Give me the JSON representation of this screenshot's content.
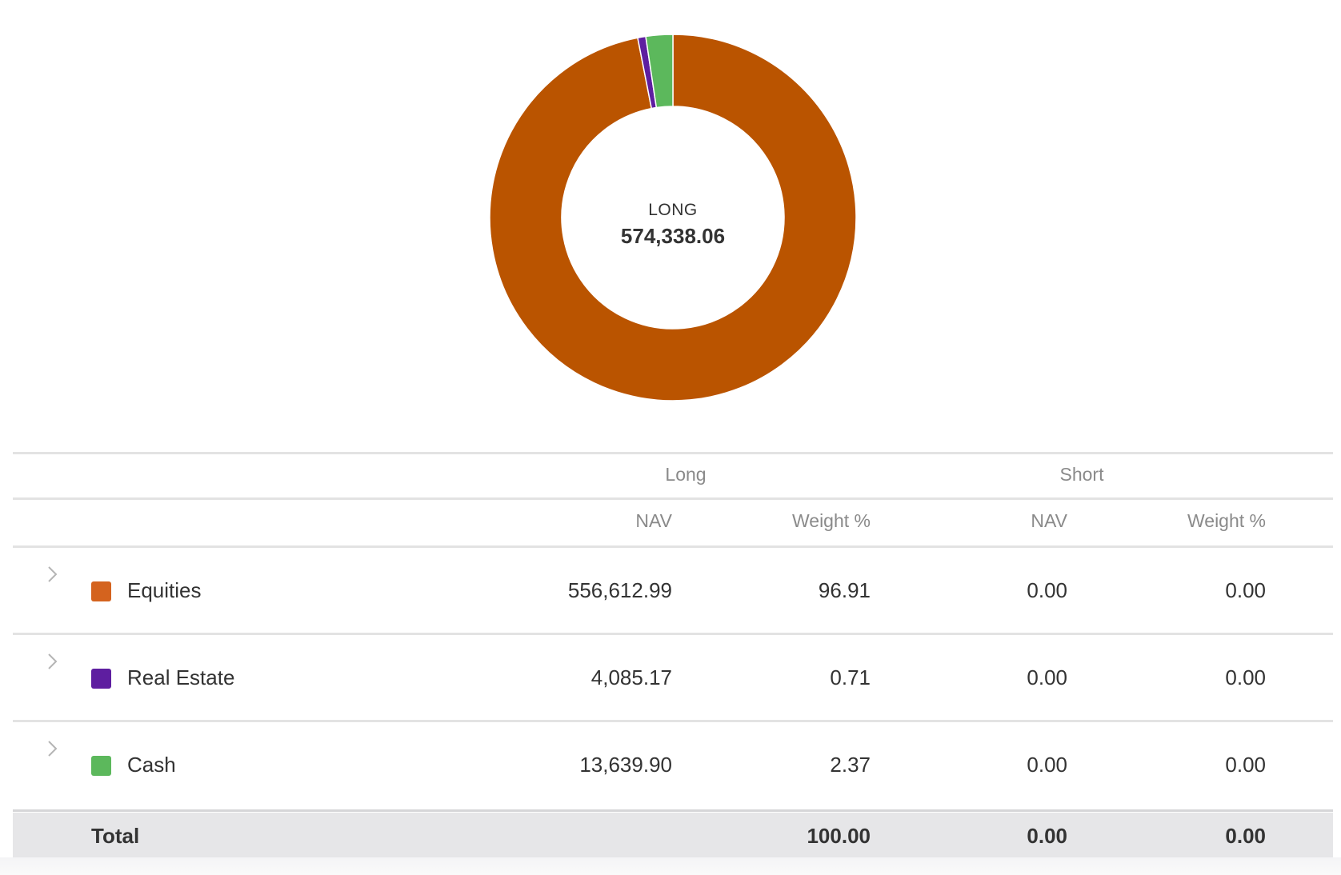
{
  "colors": {
    "equities": "#BA5400",
    "equities_swatch": "#D4631E",
    "real_estate": "#5E1EA0",
    "cash": "#5CB85C",
    "header_text": "#8a8a8a",
    "total_bg": "#e6e6e8"
  },
  "chart_data": {
    "type": "pie",
    "variant": "donut",
    "center_label": "LONG",
    "center_value": "574,338.06",
    "slices": [
      {
        "name": "Equities",
        "value": 96.91,
        "color": "#BA5400"
      },
      {
        "name": "Real Estate",
        "value": 0.71,
        "color": "#5E1EA0"
      },
      {
        "name": "Cash",
        "value": 2.37,
        "color": "#5CB85C"
      }
    ]
  },
  "table": {
    "group_headers": {
      "long": "Long",
      "short": "Short"
    },
    "columns": {
      "long_nav": "NAV",
      "long_weight": "Weight %",
      "short_nav": "NAV",
      "short_weight": "Weight %"
    },
    "rows": [
      {
        "label": "Equities",
        "long_nav": "556,612.99",
        "long_weight": "96.91",
        "short_nav": "0.00",
        "short_weight": "0.00",
        "icon": "chevron-right-icon"
      },
      {
        "label": "Real Estate",
        "long_nav": "4,085.17",
        "long_weight": "0.71",
        "short_nav": "0.00",
        "short_weight": "0.00",
        "icon": "chevron-right-icon"
      },
      {
        "label": "Cash",
        "long_nav": "13,639.90",
        "long_weight": "2.37",
        "short_nav": "0.00",
        "short_weight": "0.00",
        "icon": "chevron-right-icon"
      }
    ],
    "total": {
      "label": "Total",
      "long_nav": "",
      "long_weight": "100.00",
      "short_nav": "0.00",
      "short_weight": "0.00"
    }
  }
}
